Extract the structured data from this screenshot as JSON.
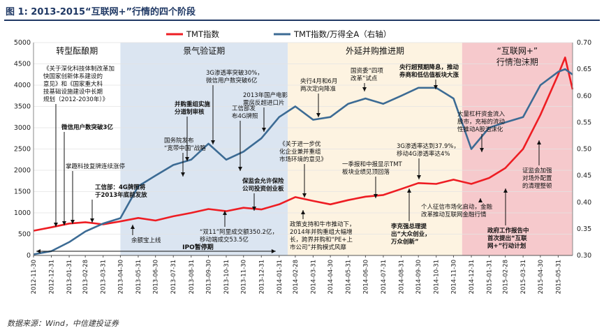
{
  "title": "图 1: 2013-2015“互联网+”行情的四个阶段",
  "source": "数据来源：Wind，中信建投证券",
  "chart_data": {
    "type": "line",
    "legend": [
      "TMT指数",
      "TMT指数/万得全A（右轴）"
    ],
    "legend_position": "top-center",
    "ylim_left": [
      0,
      5000
    ],
    "yticks_left": [
      "0",
      "500",
      "1000",
      "1500",
      "2000",
      "2500",
      "3000",
      "3500",
      "4000",
      "4500",
      "5000"
    ],
    "ylim_right": [
      0.3,
      0.7
    ],
    "yticks_right": [
      "0.30",
      "0.35",
      "0.40",
      "0.45",
      "0.50",
      "0.55",
      "0.60",
      "0.65",
      "0.70"
    ],
    "x_ticks": [
      "2012-11-30",
      "2012-12-31",
      "2013-01-31",
      "2013-02-28",
      "2013-03-31",
      "2013-04-30",
      "2013-05-31",
      "2013-06-30",
      "2013-07-31",
      "2013-08-31",
      "2013-09-30",
      "2013-10-31",
      "2013-11-30",
      "2013-12-31",
      "2014-01-31",
      "2014-02-28",
      "2014-03-31",
      "2014-04-30",
      "2014-05-31",
      "2014-06-30",
      "2014-07-31",
      "2014-08-31",
      "2014-09-30",
      "2014-10-31",
      "2014-11-30",
      "2014-12-31",
      "2015-01-31",
      "2015-02-28",
      "2015-03-31",
      "2015-04-30",
      "2015-05-31"
    ],
    "phases": [
      {
        "label": "转型酝酿期",
        "start": "2012-11-30",
        "end": "2013-04-30",
        "color": "#ffffff"
      },
      {
        "label": "景气验证期",
        "start": "2013-04-30",
        "end": "2014-02-15",
        "color": "#dbe5f1"
      },
      {
        "label": "外延并购推进期",
        "start": "2014-02-15",
        "end": "2014-12-15",
        "color": "#fdf3e1"
      },
      {
        "label": "“互联网+”行情泡沫期",
        "start": "2014-12-15",
        "end": "2015-06-25",
        "color": "#f6c9cc"
      }
    ],
    "series": [
      {
        "name": "TMT指数",
        "color": "#ee1d23",
        "axis": "left",
        "points": [
          [
            "2012-11-30",
            580
          ],
          [
            "2012-12-31",
            660
          ],
          [
            "2013-01-31",
            750
          ],
          [
            "2013-02-28",
            780
          ],
          [
            "2013-03-31",
            730
          ],
          [
            "2013-04-30",
            800
          ],
          [
            "2013-05-31",
            880
          ],
          [
            "2013-06-30",
            820
          ],
          [
            "2013-07-31",
            920
          ],
          [
            "2013-08-31",
            1000
          ],
          [
            "2013-09-30",
            1090
          ],
          [
            "2013-10-31",
            1040
          ],
          [
            "2013-11-30",
            1120
          ],
          [
            "2013-12-31",
            1080
          ],
          [
            "2014-01-31",
            1200
          ],
          [
            "2014-02-28",
            1370
          ],
          [
            "2014-03-31",
            1280
          ],
          [
            "2014-04-30",
            1200
          ],
          [
            "2014-05-31",
            1300
          ],
          [
            "2014-06-30",
            1380
          ],
          [
            "2014-07-31",
            1420
          ],
          [
            "2014-08-31",
            1560
          ],
          [
            "2014-09-30",
            1700
          ],
          [
            "2014-10-31",
            1680
          ],
          [
            "2014-11-30",
            1780
          ],
          [
            "2014-12-31",
            1680
          ],
          [
            "2015-01-31",
            1820
          ],
          [
            "2015-02-28",
            2050
          ],
          [
            "2015-03-31",
            2500
          ],
          [
            "2015-04-30",
            3300
          ],
          [
            "2015-05-31",
            4250
          ],
          [
            "2015-06-12",
            4650
          ],
          [
            "2015-06-25",
            3900
          ]
        ]
      },
      {
        "name": "TMT指数/万得全A（右轴）",
        "color": "#3c6b94",
        "axis": "right",
        "points": [
          [
            "2012-11-30",
            0.302
          ],
          [
            "2012-12-31",
            0.308
          ],
          [
            "2013-01-31",
            0.325
          ],
          [
            "2013-02-28",
            0.345
          ],
          [
            "2013-03-31",
            0.36
          ],
          [
            "2013-04-30",
            0.37
          ],
          [
            "2013-05-31",
            0.43
          ],
          [
            "2013-06-30",
            0.45
          ],
          [
            "2013-07-31",
            0.47
          ],
          [
            "2013-08-31",
            0.48
          ],
          [
            "2013-09-30",
            0.51
          ],
          [
            "2013-10-31",
            0.48
          ],
          [
            "2013-11-30",
            0.495
          ],
          [
            "2013-12-31",
            0.52
          ],
          [
            "2014-01-31",
            0.56
          ],
          [
            "2014-02-28",
            0.58
          ],
          [
            "2014-03-31",
            0.555
          ],
          [
            "2014-04-30",
            0.56
          ],
          [
            "2014-05-31",
            0.585
          ],
          [
            "2014-06-30",
            0.595
          ],
          [
            "2014-07-31",
            0.585
          ],
          [
            "2014-08-31",
            0.6
          ],
          [
            "2014-09-30",
            0.615
          ],
          [
            "2014-10-31",
            0.615
          ],
          [
            "2014-11-30",
            0.595
          ],
          [
            "2014-12-31",
            0.5
          ],
          [
            "2015-01-31",
            0.54
          ],
          [
            "2015-02-28",
            0.55
          ],
          [
            "2015-03-31",
            0.56
          ],
          [
            "2015-04-30",
            0.62
          ],
          [
            "2015-05-31",
            0.645
          ],
          [
            "2015-06-12",
            0.65
          ],
          [
            "2015-06-25",
            0.64
          ]
        ]
      }
    ],
    "annotations": [
      {
        "text": "《关于深化科技体制改革加快国家创新体系建设的意见》和《国家重大科技基础设施建设中长期规划（2012-2030年）》",
        "date": "2012-12-20"
      },
      {
        "text": "微信用户数突破3亿",
        "date": "2013-01-15"
      },
      {
        "text": "掌趣科技复牌连续涨停",
        "date": "2013-01-31"
      },
      {
        "text": "工信部：4G牌照将于2013年底前发放",
        "date": "2013-02-28"
      },
      {
        "text": "余额宝上线",
        "date": "2013-06-13"
      },
      {
        "text": "3G渗透率突破30%，微信用户数突破6亿",
        "date": "2013-10-10"
      },
      {
        "text": "并购重组实施分道制审核",
        "date": "2013-09-09"
      },
      {
        "text": "国务院发布“宽带中国”战略",
        "date": "2013-08-17"
      },
      {
        "text": "工信部发布4G牌照",
        "date": "2013-12-04"
      },
      {
        "text": "2013年国产电影票房反超进口片",
        "date": "2013-12-31"
      },
      {
        "text": "保监会允许保险公司投资创业板",
        "date": "2014-01-07"
      },
      {
        "text": "“双11”阿里成交额350.2亿，移动端成交53.5亿",
        "date": "2013-11-11"
      },
      {
        "text": "IPO暂停期",
        "date": "2013-08-31"
      },
      {
        "text": "《关于进一步优化企业兼并重组市场环境的意见》",
        "date": "2014-03-24"
      },
      {
        "text": "央行4月和6月两次定向降准",
        "date": "2014-04-25"
      },
      {
        "text": "国资委“四项改革”试点",
        "date": "2014-07-15"
      },
      {
        "text": "央行超预期降息，推动券商和低估值板块大涨",
        "date": "2014-11-21"
      },
      {
        "text": "政策支持和牛市推动下，2014年并购重组大幅增长，跨界并购和“PE+上市公司”并购模式风靡",
        "date": "2014-03-15"
      },
      {
        "text": "一季报和中报显示TMT板块业绩见顶回落",
        "date": "2014-06-20"
      },
      {
        "text": "3G渗透率达到37.9%，移动4G渗透率达4%",
        "date": "2014-09-20"
      },
      {
        "text": "李克强总理提出“大众创业，万众创新”",
        "date": "2014-09-10"
      },
      {
        "text": "个人征信市场化启动，金融改革推动互联网金融行情",
        "date": "2015-01-05"
      },
      {
        "text": "大量杠杆资金流入股市，充裕的流动性推动A股泡沫化",
        "date": "2015-01-10"
      },
      {
        "text": "政府工作报告中首次提出“互联网+”行动计划",
        "date": "2015-03-05"
      },
      {
        "text": "证监会加强对场外配置的清理整顿",
        "date": "2015-06-12"
      }
    ]
  }
}
